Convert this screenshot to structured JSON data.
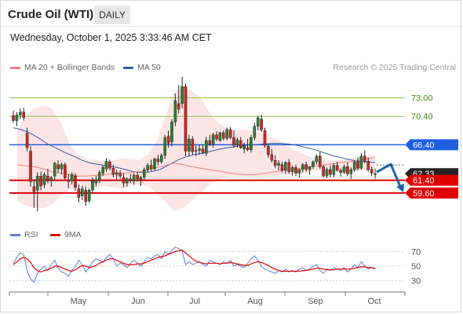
{
  "header": {
    "title": "Crude Oil (WTI)",
    "timeframe": "DAILY",
    "datetime": "Wednesday, October 1, 2025 3:33:46 AM CET"
  },
  "legend": {
    "ma20": {
      "label": "MA 20 + Bollinger Bands",
      "color": "#f08080"
    },
    "ma50": {
      "label": "MA 50",
      "color": "#2e5fa8"
    },
    "rsi": {
      "label": "RSI",
      "color": "#5b7fd6"
    },
    "rsi_ma": {
      "label": "9MA",
      "color": "#e00000"
    }
  },
  "credit": "Research © 2025 Trading Central",
  "chart_data": {
    "type": "candlestick",
    "x_labels": [
      "May",
      "Jun",
      "Jul",
      "Aug",
      "Sep",
      "Oct"
    ],
    "price_axis": {
      "min": 55.5,
      "max": 76.5
    },
    "levels": [
      {
        "value": 73.0,
        "label": "73.00",
        "type": "resistance",
        "color": "#8bc34a"
      },
      {
        "value": 70.4,
        "label": "70.40",
        "type": "resistance",
        "color": "#8bc34a"
      },
      {
        "value": 66.4,
        "label": "66.40",
        "type": "pivot",
        "color": "#1e5fe0"
      },
      {
        "value": 62.33,
        "label": "62.33",
        "type": "last-price",
        "color": "#222222"
      },
      {
        "value": 61.4,
        "label": "61.40",
        "type": "support",
        "color": "#e00000"
      },
      {
        "value": 59.6,
        "label": "59.60",
        "type": "support",
        "color": "#e00000"
      }
    ],
    "candles": [
      [
        70.5,
        71.2,
        69.5,
        69.8
      ],
      [
        69.8,
        71.0,
        69.0,
        70.6
      ],
      [
        70.6,
        71.5,
        70.0,
        71.0
      ],
      [
        71.0,
        71.6,
        69.8,
        70.2
      ],
      [
        68.0,
        68.8,
        65.5,
        66.0
      ],
      [
        65.5,
        66.2,
        60.5,
        61.2
      ],
      [
        60.5,
        61.5,
        57.5,
        59.8
      ],
      [
        60.0,
        62.5,
        57.0,
        62.0
      ],
      [
        62.0,
        62.6,
        60.0,
        60.6
      ],
      [
        60.8,
        62.5,
        60.3,
        62.2
      ],
      [
        62.0,
        63.0,
        61.0,
        61.5
      ],
      [
        61.4,
        62.0,
        60.5,
        61.8
      ],
      [
        62.0,
        64.0,
        61.5,
        63.8
      ],
      [
        63.6,
        64.2,
        62.5,
        63.0
      ],
      [
        63.0,
        63.9,
        62.2,
        63.6
      ],
      [
        63.6,
        63.9,
        61.5,
        61.7
      ],
      [
        61.5,
        62.3,
        60.3,
        61.2
      ],
      [
        61.3,
        62.5,
        60.8,
        62.2
      ],
      [
        62.0,
        62.4,
        59.9,
        60.4
      ],
      [
        60.2,
        60.8,
        58.3,
        59.0
      ],
      [
        59.2,
        60.6,
        58.6,
        60.2
      ],
      [
        60.0,
        60.5,
        57.8,
        58.4
      ],
      [
        58.5,
        60.3,
        58.2,
        60.0
      ],
      [
        60.0,
        61.8,
        59.6,
        61.3
      ],
      [
        61.0,
        62.0,
        60.5,
        61.4
      ],
      [
        61.4,
        62.8,
        61.0,
        62.5
      ],
      [
        62.4,
        63.5,
        62.0,
        63.2
      ],
      [
        63.0,
        64.5,
        62.6,
        64.1
      ],
      [
        64.0,
        64.3,
        62.8,
        63.1
      ],
      [
        63.1,
        63.6,
        61.8,
        62.2
      ],
      [
        62.2,
        62.9,
        61.5,
        62.5
      ],
      [
        62.4,
        62.8,
        61.6,
        62.0
      ],
      [
        61.8,
        62.4,
        60.4,
        61.0
      ],
      [
        61.0,
        61.8,
        60.5,
        61.6
      ],
      [
        61.6,
        62.3,
        61.0,
        61.3
      ],
      [
        61.3,
        62.4,
        60.8,
        62.1
      ],
      [
        62.1,
        62.6,
        61.2,
        61.6
      ],
      [
        61.5,
        62.0,
        60.6,
        61.8
      ],
      [
        61.8,
        63.2,
        61.4,
        62.9
      ],
      [
        62.9,
        63.8,
        62.5,
        63.5
      ],
      [
        63.5,
        64.3,
        62.7,
        63.0
      ],
      [
        63.0,
        64.6,
        62.8,
        64.4
      ],
      [
        64.4,
        65.0,
        63.5,
        64.0
      ],
      [
        64.0,
        65.2,
        63.7,
        64.9
      ],
      [
        64.9,
        67.8,
        64.4,
        67.4
      ],
      [
        67.6,
        68.4,
        66.0,
        66.6
      ],
      [
        66.8,
        70.0,
        66.2,
        69.6
      ],
      [
        69.6,
        73.6,
        69.0,
        72.6
      ],
      [
        72.2,
        74.8,
        70.8,
        71.4
      ],
      [
        72.2,
        76.0,
        71.5,
        74.6
      ],
      [
        74.6,
        75.0,
        64.8,
        65.5
      ],
      [
        65.5,
        67.8,
        64.8,
        67.2
      ],
      [
        67.2,
        67.6,
        65.0,
        65.4
      ],
      [
        65.5,
        66.3,
        64.8,
        65.6
      ],
      [
        65.6,
        66.4,
        65.0,
        65.8
      ],
      [
        65.8,
        66.4,
        65.1,
        65.3
      ],
      [
        65.2,
        67.5,
        64.8,
        67.0
      ],
      [
        67.0,
        67.8,
        66.2,
        66.5
      ],
      [
        66.5,
        68.1,
        66.0,
        67.8
      ],
      [
        67.8,
        68.3,
        66.9,
        67.2
      ],
      [
        67.0,
        68.2,
        66.8,
        68.1
      ],
      [
        68.1,
        68.4,
        67.0,
        67.3
      ],
      [
        67.3,
        68.8,
        67.0,
        68.5
      ],
      [
        68.5,
        68.9,
        67.2,
        67.4
      ],
      [
        67.4,
        68.4,
        66.0,
        66.3
      ],
      [
        66.4,
        67.4,
        66.0,
        67.1
      ],
      [
        67.0,
        67.5,
        65.8,
        66.0
      ],
      [
        65.8,
        66.7,
        65.2,
        66.2
      ],
      [
        66.0,
        67.2,
        65.5,
        65.7
      ],
      [
        65.7,
        67.8,
        65.3,
        67.4
      ],
      [
        67.4,
        69.5,
        67.0,
        69.0
      ],
      [
        69.0,
        70.5,
        68.4,
        70.2
      ],
      [
        70.0,
        70.6,
        68.2,
        68.5
      ],
      [
        68.4,
        68.8,
        66.0,
        66.3
      ],
      [
        66.2,
        66.5,
        64.6,
        65.0
      ],
      [
        65.0,
        65.8,
        63.9,
        64.2
      ],
      [
        64.2,
        64.9,
        63.1,
        63.5
      ],
      [
        63.5,
        64.2,
        62.8,
        63.8
      ],
      [
        63.6,
        64.0,
        62.5,
        62.8
      ],
      [
        62.8,
        64.1,
        62.3,
        63.9
      ],
      [
        63.9,
        64.4,
        62.3,
        62.6
      ],
      [
        62.6,
        63.5,
        62.0,
        63.2
      ],
      [
        63.2,
        63.6,
        62.0,
        62.4
      ],
      [
        62.4,
        63.0,
        61.8,
        62.9
      ],
      [
        62.9,
        63.8,
        62.5,
        63.6
      ],
      [
        63.6,
        64.0,
        62.6,
        62.9
      ],
      [
        62.9,
        63.4,
        62.2,
        63.3
      ],
      [
        63.3,
        64.2,
        63.0,
        64.0
      ],
      [
        64.0,
        65.0,
        63.6,
        64.8
      ],
      [
        64.8,
        65.4,
        63.0,
        63.3
      ],
      [
        63.3,
        63.6,
        61.8,
        62.0
      ],
      [
        62.0,
        63.2,
        61.7,
        62.9
      ],
      [
        62.9,
        63.5,
        61.8,
        62.2
      ],
      [
        62.2,
        63.8,
        61.8,
        63.5
      ],
      [
        63.5,
        64.0,
        62.6,
        62.8
      ],
      [
        62.8,
        63.1,
        61.9,
        62.5
      ],
      [
        62.5,
        63.6,
        62.3,
        63.3
      ],
      [
        63.3,
        63.9,
        62.0,
        62.3
      ],
      [
        62.3,
        63.2,
        61.6,
        62.9
      ],
      [
        62.9,
        64.2,
        62.6,
        64.0
      ],
      [
        64.0,
        64.6,
        62.8,
        63.1
      ],
      [
        63.1,
        65.2,
        62.9,
        64.8
      ],
      [
        64.8,
        65.6,
        63.8,
        64.1
      ],
      [
        64.1,
        64.6,
        62.6,
        62.9
      ],
      [
        62.9,
        63.3,
        62.0,
        62.4
      ],
      [
        62.3,
        63.0,
        61.6,
        62.33
      ]
    ],
    "ma20": [
      63.6,
      63.4,
      63.3,
      63.0,
      62.6,
      62.4,
      62.2,
      62.0,
      62.0,
      62.1,
      62.2,
      62.3,
      62.4,
      62.5,
      62.6,
      62.9,
      63.2,
      63.5,
      63.8,
      63.6,
      63.3,
      63.1,
      62.9,
      62.7,
      62.5,
      62.3,
      62.2,
      62.2,
      62.3,
      62.5,
      62.7,
      62.9,
      63.0,
      63.2,
      63.4,
      63.5,
      63.7,
      63.9,
      64.0,
      64.2,
      64.4,
      64.6
    ],
    "ma50": [
      68.8,
      68.5,
      68.0,
      67.3,
      66.5,
      65.9,
      65.3,
      64.8,
      64.2,
      63.8,
      63.6,
      63.4,
      63.2,
      62.9,
      62.6,
      62.5,
      62.6,
      62.9,
      63.5,
      64.2,
      64.7,
      65.0,
      65.2,
      65.5,
      65.8,
      66.0,
      66.2,
      66.3,
      66.4,
      66.5,
      66.6,
      66.6,
      66.5,
      66.3,
      66.0,
      65.7,
      65.3,
      64.9,
      64.6,
      64.3,
      64.1,
      64.0,
      63.9
    ],
    "bb_upper": [
      68.5,
      70.5,
      71.5,
      72.0,
      71.5,
      69.5,
      66.5,
      65.0,
      64.4,
      64.3,
      64.0,
      64.2,
      64.5,
      64.4,
      64.3,
      65.0,
      67.0,
      70.5,
      74.0,
      74.5,
      74.0,
      73.0,
      71.0,
      69.5,
      68.8,
      68.5,
      68.5,
      68.4,
      68.0,
      67.5,
      67.0,
      66.2,
      65.5,
      65.0,
      64.5,
      64.3,
      64.2,
      64.3,
      64.5,
      64.7,
      64.8,
      65.0
    ],
    "bb_lower": [
      58.5,
      57.8,
      57.5,
      57.5,
      58.0,
      59.2,
      60.0,
      60.2,
      60.3,
      60.5,
      60.6,
      60.4,
      60.2,
      60.6,
      60.8,
      60.6,
      59.5,
      58.3,
      57.0,
      57.5,
      58.5,
      59.5,
      60.8,
      61.5,
      61.8,
      62.0,
      62.0,
      61.9,
      61.8,
      61.9,
      62.0,
      62.2,
      62.3,
      62.4,
      62.6,
      62.7,
      62.6,
      62.7,
      62.6,
      62.7,
      62.8,
      62.9
    ],
    "forecast": {
      "from": 62.33,
      "to": 59.6
    },
    "rsi": {
      "axis_ticks": [
        70,
        50,
        30
      ],
      "min": 20,
      "max": 80,
      "rsi_values": [
        54,
        62,
        68,
        66,
        44,
        32,
        28,
        40,
        46,
        50,
        44,
        52,
        58,
        48,
        42,
        40,
        36,
        44,
        50,
        58,
        52,
        42,
        48,
        56,
        60,
        58,
        55,
        62,
        66,
        60,
        50,
        54,
        52,
        48,
        54,
        58,
        54,
        50,
        56,
        62,
        60,
        64,
        66,
        60,
        70,
        66,
        72,
        76,
        74,
        70,
        52,
        56,
        52,
        54,
        56,
        52,
        50,
        58,
        56,
        54,
        52,
        56,
        54,
        58,
        50,
        52,
        50,
        48,
        54,
        60,
        64,
        58,
        50,
        46,
        44,
        42,
        40,
        44,
        42,
        46,
        42,
        44,
        42,
        46,
        48,
        44,
        46,
        50,
        52,
        44,
        40,
        46,
        44,
        48,
        46,
        44,
        48,
        42,
        46,
        52,
        48,
        56,
        50,
        46,
        48,
        46
      ],
      "ma_values": [
        52,
        56,
        60,
        62,
        60,
        55,
        48,
        44,
        42,
        44,
        45,
        47,
        50,
        50,
        48,
        46,
        44,
        43,
        45,
        48,
        51,
        50,
        48,
        49,
        51,
        54,
        56,
        58,
        60,
        60,
        58,
        56,
        54,
        52,
        52,
        52,
        53,
        53,
        54,
        56,
        58,
        60,
        62,
        63,
        64,
        66,
        68,
        70,
        71,
        72,
        68,
        64,
        60,
        57,
        55,
        54,
        53,
        54,
        54,
        54,
        53,
        54,
        54,
        55,
        54,
        53,
        52,
        51,
        51,
        53,
        55,
        56,
        55,
        53,
        51,
        48,
        46,
        44,
        43,
        43,
        43,
        43,
        43,
        43,
        44,
        44,
        45,
        46,
        47,
        47,
        46,
        45,
        45,
        45,
        46,
        46,
        46,
        46,
        46,
        47,
        48,
        49,
        49,
        48,
        48,
        47
      ]
    }
  }
}
